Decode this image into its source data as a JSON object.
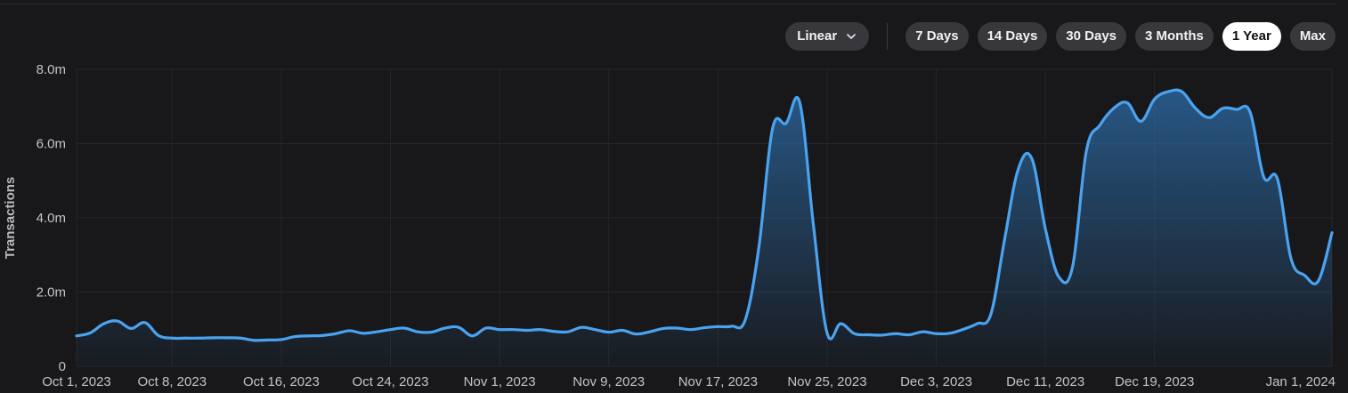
{
  "controls": {
    "scale": {
      "label": "Linear",
      "icon": "chevron-down-icon"
    },
    "ranges": [
      {
        "label": "7 Days",
        "active": false
      },
      {
        "label": "14 Days",
        "active": false
      },
      {
        "label": "30 Days",
        "active": false
      },
      {
        "label": "3 Months",
        "active": false
      },
      {
        "label": "1 Year",
        "active": true
      },
      {
        "label": "Max",
        "active": false
      }
    ]
  },
  "colors": {
    "background": "#18181b",
    "line": "#4aa3f0",
    "area_top": "#2d6ca8",
    "grid": "#26262b",
    "active_pill": "#ffffff",
    "pill": "#38383c"
  },
  "chart_data": {
    "type": "area",
    "ylabel": "Transactions",
    "xlabel": "",
    "ylim": [
      0,
      8000000
    ],
    "y_ticks": [
      0,
      2000000,
      4000000,
      6000000,
      8000000
    ],
    "y_tick_labels": [
      "0",
      "2.0m",
      "4.0m",
      "6.0m",
      "8.0m"
    ],
    "x_range": [
      "2023-10-01",
      "2024-01-01"
    ],
    "x_ticks": [
      {
        "date": "2023-10-01",
        "label": "Oct 1, 2023"
      },
      {
        "date": "2023-10-08",
        "label": "Oct 8, 2023"
      },
      {
        "date": "2023-10-16",
        "label": "Oct 16, 2023"
      },
      {
        "date": "2023-10-24",
        "label": "Oct 24, 2023"
      },
      {
        "date": "2023-11-01",
        "label": "Nov 1, 2023"
      },
      {
        "date": "2023-11-09",
        "label": "Nov 9, 2023"
      },
      {
        "date": "2023-11-17",
        "label": "Nov 17, 2023"
      },
      {
        "date": "2023-11-25",
        "label": "Nov 25, 2023"
      },
      {
        "date": "2023-12-03",
        "label": "Dec 3, 2023"
      },
      {
        "date": "2023-12-11",
        "label": "Dec 11, 2023"
      },
      {
        "date": "2023-12-19",
        "label": "Dec 19, 2023"
      },
      {
        "date": "2024-01-01",
        "label": "Jan 1, 2024"
      }
    ],
    "grid": true,
    "series": [
      {
        "values": [
          [
            "2023-10-01",
            820000
          ],
          [
            "2023-10-02",
            900000
          ],
          [
            "2023-10-03",
            1150000
          ],
          [
            "2023-10-04",
            1220000
          ],
          [
            "2023-10-05",
            1020000
          ],
          [
            "2023-10-06",
            1180000
          ],
          [
            "2023-10-07",
            830000
          ],
          [
            "2023-10-08",
            760000
          ],
          [
            "2023-10-09",
            760000
          ],
          [
            "2023-10-10",
            760000
          ],
          [
            "2023-10-11",
            770000
          ],
          [
            "2023-10-12",
            770000
          ],
          [
            "2023-10-13",
            760000
          ],
          [
            "2023-10-14",
            700000
          ],
          [
            "2023-10-15",
            710000
          ],
          [
            "2023-10-16",
            720000
          ],
          [
            "2023-10-17",
            800000
          ],
          [
            "2023-10-18",
            820000
          ],
          [
            "2023-10-19",
            830000
          ],
          [
            "2023-10-20",
            880000
          ],
          [
            "2023-10-21",
            960000
          ],
          [
            "2023-10-22",
            890000
          ],
          [
            "2023-10-23",
            930000
          ],
          [
            "2023-10-24",
            990000
          ],
          [
            "2023-10-25",
            1030000
          ],
          [
            "2023-10-26",
            930000
          ],
          [
            "2023-10-27",
            920000
          ],
          [
            "2023-10-28",
            1030000
          ],
          [
            "2023-10-29",
            1050000
          ],
          [
            "2023-10-30",
            820000
          ],
          [
            "2023-10-31",
            1030000
          ],
          [
            "2023-11-01",
            990000
          ],
          [
            "2023-11-02",
            990000
          ],
          [
            "2023-11-03",
            970000
          ],
          [
            "2023-11-04",
            990000
          ],
          [
            "2023-11-05",
            940000
          ],
          [
            "2023-11-06",
            930000
          ],
          [
            "2023-11-07",
            1050000
          ],
          [
            "2023-11-08",
            990000
          ],
          [
            "2023-11-09",
            920000
          ],
          [
            "2023-11-10",
            970000
          ],
          [
            "2023-11-11",
            870000
          ],
          [
            "2023-11-12",
            930000
          ],
          [
            "2023-11-13",
            1020000
          ],
          [
            "2023-11-14",
            1030000
          ],
          [
            "2023-11-15",
            990000
          ],
          [
            "2023-11-16",
            1040000
          ],
          [
            "2023-11-17",
            1070000
          ],
          [
            "2023-11-18",
            1080000
          ],
          [
            "2023-11-19",
            1250000
          ],
          [
            "2023-11-20",
            3200000
          ],
          [
            "2023-11-21",
            6400000
          ],
          [
            "2023-11-22",
            6550000
          ],
          [
            "2023-11-23",
            7100000
          ],
          [
            "2023-11-24",
            3800000
          ],
          [
            "2023-11-25",
            900000
          ],
          [
            "2023-11-26",
            1150000
          ],
          [
            "2023-11-27",
            880000
          ],
          [
            "2023-11-28",
            850000
          ],
          [
            "2023-11-29",
            840000
          ],
          [
            "2023-11-30",
            880000
          ],
          [
            "2023-12-01",
            850000
          ],
          [
            "2023-12-02",
            930000
          ],
          [
            "2023-12-03",
            880000
          ],
          [
            "2023-12-04",
            890000
          ],
          [
            "2023-12-05",
            1000000
          ],
          [
            "2023-12-06",
            1150000
          ],
          [
            "2023-12-07",
            1400000
          ],
          [
            "2023-12-08",
            3400000
          ],
          [
            "2023-12-09",
            5300000
          ],
          [
            "2023-12-10",
            5600000
          ],
          [
            "2023-12-11",
            3700000
          ],
          [
            "2023-12-12",
            2400000
          ],
          [
            "2023-12-13",
            2700000
          ],
          [
            "2023-12-14",
            5800000
          ],
          [
            "2023-12-15",
            6500000
          ],
          [
            "2023-12-16",
            6950000
          ],
          [
            "2023-12-17",
            7100000
          ],
          [
            "2023-12-18",
            6600000
          ],
          [
            "2023-12-19",
            7200000
          ],
          [
            "2023-12-20",
            7400000
          ],
          [
            "2023-12-21",
            7400000
          ],
          [
            "2023-12-22",
            6950000
          ],
          [
            "2023-12-23",
            6700000
          ],
          [
            "2023-12-24",
            6950000
          ],
          [
            "2023-12-25",
            6920000
          ],
          [
            "2023-12-26",
            6850000
          ],
          [
            "2023-12-27",
            5100000
          ],
          [
            "2023-12-28",
            5050000
          ],
          [
            "2023-12-29",
            2900000
          ],
          [
            "2023-12-30",
            2450000
          ],
          [
            "2023-12-31",
            2300000
          ],
          [
            "2024-01-01",
            3600000
          ]
        ]
      }
    ]
  }
}
